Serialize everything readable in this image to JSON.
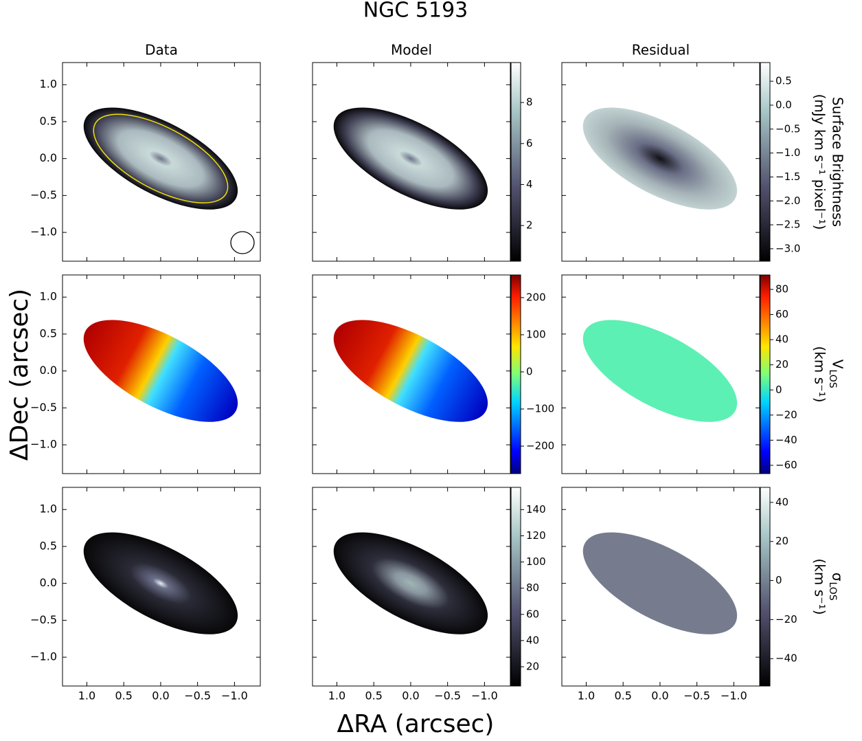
{
  "chart_data": {
    "type": "image-grid",
    "title": "NGC 5193",
    "xlabel": "ΔRA (arcsec)",
    "ylabel": "ΔDec (arcsec)",
    "columns": [
      "Data",
      "Model",
      "Residual"
    ],
    "xlim": [
      1.33,
      -1.35
    ],
    "xticks": [
      {
        "value": 1.0,
        "label": "1.0"
      },
      {
        "value": 0.5,
        "label": "0.5"
      },
      {
        "value": 0.0,
        "label": "0.0"
      },
      {
        "value": -0.5,
        "label": "−0.5"
      },
      {
        "value": -1.0,
        "label": "−1.0"
      }
    ],
    "ylim": [
      -1.39,
      1.3
    ],
    "yticks": [
      {
        "value": 1.0,
        "label": "1.0"
      },
      {
        "value": 0.5,
        "label": "0.5"
      },
      {
        "value": 0.0,
        "label": "0.0"
      },
      {
        "value": -0.5,
        "label": "−0.5"
      },
      {
        "value": -1.0,
        "label": "−1.0"
      }
    ],
    "rows": [
      {
        "cmap": "bone",
        "label": {
          "name": "Surface Brightness",
          "unit": "(mJy km s⁻¹ pixel⁻¹)"
        },
        "colorbars": [
          {
            "clim": [
              0.26,
              9.95
            ],
            "ticks": [
              2,
              4,
              6,
              8
            ]
          },
          {
            "clim": [
              -3.26,
              0.89
            ],
            "ticks": [
              {
                "value": 0.5,
                "label": "0.5"
              },
              {
                "value": 0.0,
                "label": "0.0"
              },
              {
                "value": -0.5,
                "label": "−0.5"
              },
              {
                "value": -1.0,
                "label": "−1.0"
              },
              {
                "value": -1.5,
                "label": "−1.5"
              },
              {
                "value": -2.0,
                "label": "−2.0"
              },
              {
                "value": -2.5,
                "label": "−2.5"
              },
              {
                "value": -3.0,
                "label": "−3.0"
              }
            ]
          }
        ]
      },
      {
        "cmap": "jet",
        "label": {
          "name": "V",
          "subscript": "LOS",
          "unit": "(km s⁻¹)"
        },
        "colorbars": [
          {
            "clim": [
              -274,
              261
            ],
            "ticks": [
              200,
              100,
              0,
              {
                "value": -100,
                "label": "−100"
              },
              {
                "value": -200,
                "label": "−200"
              }
            ]
          },
          {
            "clim": [
              -66.6,
              91.5
            ],
            "ticks": [
              80,
              60,
              40,
              20,
              0,
              {
                "value": -20,
                "label": "−20"
              },
              {
                "value": -40,
                "label": "−40"
              },
              {
                "value": -60,
                "label": "−60"
              }
            ]
          }
        ]
      },
      {
        "cmap": "bone",
        "label": {
          "name": "σ",
          "subscript": "LOS",
          "unit": "(km s⁻¹)"
        },
        "colorbars": [
          {
            "clim": [
              5.3,
              157
            ],
            "ticks": [
              20,
              40,
              60,
              80,
              100,
              120,
              140
            ]
          },
          {
            "clim": [
              -54,
              47.7
            ],
            "ticks": [
              40,
              20,
              0,
              {
                "value": -20,
                "label": "−20"
              },
              {
                "value": -40,
                "label": "−40"
              }
            ]
          }
        ]
      }
    ]
  }
}
